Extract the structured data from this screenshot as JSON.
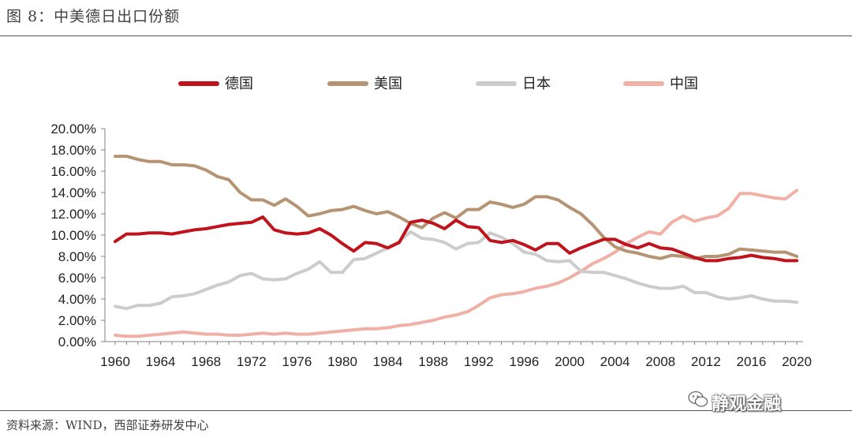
{
  "figure": {
    "title": "图 8：中美德日出口份额",
    "source": "资料来源：WIND，西部证券研发中心",
    "watermark": "静观金融"
  },
  "colors": {
    "germany": "#c0141d",
    "usa": "#b69473",
    "japan": "#cccccc",
    "china": "#f0b0a5",
    "axis": "#808080"
  },
  "chart_data": {
    "type": "line",
    "title": "",
    "xlabel": "",
    "ylabel": "",
    "x": [
      1960,
      1961,
      1962,
      1963,
      1964,
      1965,
      1966,
      1967,
      1968,
      1969,
      1970,
      1971,
      1972,
      1973,
      1974,
      1975,
      1976,
      1977,
      1978,
      1979,
      1980,
      1981,
      1982,
      1983,
      1984,
      1985,
      1986,
      1987,
      1988,
      1989,
      1990,
      1991,
      1992,
      1993,
      1994,
      1995,
      1996,
      1997,
      1998,
      1999,
      2000,
      2001,
      2002,
      2003,
      2004,
      2005,
      2006,
      2007,
      2008,
      2009,
      2010,
      2011,
      2012,
      2013,
      2014,
      2015,
      2016,
      2017,
      2018,
      2019,
      2020
    ],
    "x_ticks": [
      "1960",
      "1964",
      "1968",
      "1972",
      "1976",
      "1980",
      "1984",
      "1988",
      "1992",
      "1996",
      "2000",
      "2004",
      "2008",
      "2012",
      "2016",
      "2020"
    ],
    "y_ticks": [
      "0.00%",
      "2.00%",
      "4.00%",
      "6.00%",
      "8.00%",
      "10.00%",
      "12.00%",
      "14.00%",
      "16.00%",
      "18.00%",
      "20.00%"
    ],
    "ylim": [
      0,
      20
    ],
    "legend_position": "top",
    "series": [
      {
        "name": "德国",
        "color_key": "germany",
        "values": [
          9.4,
          10.1,
          10.1,
          10.2,
          10.2,
          10.1,
          10.3,
          10.5,
          10.6,
          10.8,
          11.0,
          11.1,
          11.2,
          11.7,
          10.5,
          10.2,
          10.1,
          10.2,
          10.6,
          10.0,
          9.2,
          8.5,
          9.3,
          9.2,
          8.8,
          9.3,
          11.2,
          11.4,
          11.1,
          10.6,
          11.4,
          10.8,
          10.7,
          9.5,
          9.3,
          9.5,
          9.1,
          8.6,
          9.2,
          9.2,
          8.3,
          8.8,
          9.2,
          9.6,
          9.6,
          9.1,
          8.8,
          9.2,
          8.8,
          8.7,
          8.3,
          7.9,
          7.6,
          7.6,
          7.8,
          7.9,
          8.1,
          7.9,
          7.8,
          7.6,
          7.6
        ]
      },
      {
        "name": "美国",
        "color_key": "usa",
        "values": [
          17.4,
          17.4,
          17.1,
          16.9,
          16.9,
          16.6,
          16.6,
          16.5,
          16.1,
          15.5,
          15.2,
          14.0,
          13.3,
          13.3,
          12.8,
          13.4,
          12.7,
          11.8,
          12.0,
          12.3,
          12.4,
          12.7,
          12.3,
          12.0,
          12.2,
          11.7,
          11.1,
          10.7,
          11.6,
          12.1,
          11.6,
          12.4,
          12.4,
          13.1,
          12.9,
          12.6,
          12.9,
          13.6,
          13.6,
          13.3,
          12.6,
          12.0,
          11.0,
          9.8,
          8.9,
          8.5,
          8.3,
          8.0,
          7.8,
          8.1,
          8.0,
          7.8,
          8.0,
          8.0,
          8.2,
          8.7,
          8.6,
          8.5,
          8.4,
          8.4,
          8.0
        ]
      },
      {
        "name": "日本",
        "color_key": "japan",
        "values": [
          3.3,
          3.1,
          3.4,
          3.4,
          3.6,
          4.2,
          4.3,
          4.5,
          4.9,
          5.3,
          5.6,
          6.2,
          6.4,
          5.9,
          5.8,
          5.9,
          6.4,
          6.8,
          7.5,
          6.5,
          6.5,
          7.7,
          7.8,
          8.3,
          8.8,
          9.4,
          10.3,
          9.7,
          9.6,
          9.3,
          8.7,
          9.2,
          9.3,
          10.2,
          9.8,
          9.2,
          8.4,
          8.2,
          7.6,
          7.5,
          7.6,
          6.6,
          6.5,
          6.5,
          6.2,
          5.9,
          5.5,
          5.2,
          5.0,
          5.0,
          5.2,
          4.6,
          4.6,
          4.2,
          4.0,
          4.1,
          4.3,
          4.0,
          3.8,
          3.8,
          3.7
        ]
      },
      {
        "name": "中国",
        "color_key": "china",
        "values": [
          0.6,
          0.5,
          0.5,
          0.6,
          0.7,
          0.8,
          0.9,
          0.8,
          0.7,
          0.7,
          0.6,
          0.6,
          0.7,
          0.8,
          0.7,
          0.8,
          0.7,
          0.7,
          0.8,
          0.9,
          1.0,
          1.1,
          1.2,
          1.2,
          1.3,
          1.5,
          1.6,
          1.8,
          2.0,
          2.3,
          2.5,
          2.8,
          3.4,
          4.1,
          4.4,
          4.5,
          4.7,
          5.0,
          5.2,
          5.5,
          6.0,
          6.6,
          7.3,
          7.8,
          8.4,
          9.2,
          9.8,
          10.3,
          10.1,
          11.2,
          11.8,
          11.3,
          11.6,
          11.8,
          12.5,
          13.9,
          13.9,
          13.7,
          13.5,
          13.4,
          14.2
        ]
      }
    ]
  }
}
